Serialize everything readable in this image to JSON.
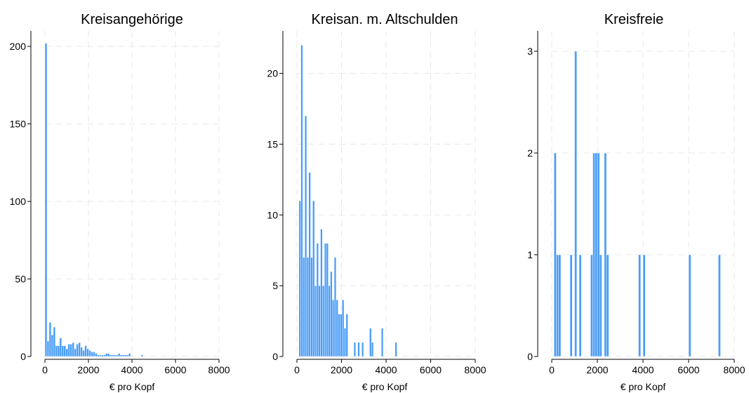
{
  "chart_data": [
    {
      "type": "bar",
      "title": "Kreisangehörige",
      "xlabel": "€ pro Kopf",
      "ylabel": "",
      "xlim": [
        0,
        8000
      ],
      "ylim": [
        0,
        210
      ],
      "x_ticks": [
        "0",
        "2000",
        "4000",
        "6000",
        "8000"
      ],
      "y_ticks": [
        "0",
        "50",
        "100",
        "150",
        "200"
      ],
      "grid": true,
      "bar_width": 96,
      "x": [
        0,
        96,
        192,
        288,
        384,
        480,
        576,
        672,
        768,
        864,
        960,
        1056,
        1152,
        1248,
        1344,
        1440,
        1536,
        1632,
        1728,
        1824,
        1920,
        2016,
        2112,
        2208,
        2304,
        2400,
        2496,
        2592,
        2688,
        2784,
        2880,
        2976,
        3072,
        3168,
        3264,
        3360,
        3456,
        3552,
        3648,
        3744,
        3840,
        4416
      ],
      "values": [
        202,
        10,
        22,
        14,
        19,
        7,
        7,
        12,
        7,
        7,
        5,
        8,
        8,
        9,
        5,
        8,
        9,
        6,
        4,
        7,
        5,
        4,
        3,
        3,
        2,
        1,
        1,
        1,
        1,
        2,
        2,
        1,
        1,
        1,
        1,
        2,
        1,
        1,
        1,
        1,
        2,
        1
      ]
    },
    {
      "type": "bar",
      "title": "Kreisan. m. Altschulden",
      "xlabel": "€ pro Kopf",
      "ylabel": "",
      "xlim": [
        0,
        8000
      ],
      "ylim": [
        0,
        23
      ],
      "x_ticks": [
        "0",
        "2000",
        "4000",
        "6000",
        "8000"
      ],
      "y_ticks": [
        "0",
        "5",
        "10",
        "15",
        "20"
      ],
      "grid": true,
      "bar_width": 88,
      "x": [
        88,
        176,
        264,
        352,
        440,
        528,
        616,
        704,
        792,
        880,
        968,
        1056,
        1144,
        1232,
        1320,
        1408,
        1496,
        1584,
        1672,
        1760,
        1848,
        1936,
        2024,
        2112,
        2200,
        2552,
        2728,
        2904,
        3256,
        3344,
        3784,
        4400
      ],
      "values": [
        11,
        22,
        7,
        17,
        7,
        13,
        7,
        11,
        5,
        8,
        5,
        9,
        5,
        8,
        8,
        5,
        6,
        4,
        7,
        4,
        3,
        3,
        4,
        2,
        3,
        1,
        1,
        1,
        2,
        1,
        2,
        1
      ]
    },
    {
      "type": "bar",
      "title": "Kreisfreie",
      "xlabel": "€ pro Kopf",
      "ylabel": "",
      "xlim": [
        0,
        8000
      ],
      "ylim": [
        0,
        3.2
      ],
      "x_ticks": [
        "0",
        "2000",
        "4000",
        "6000",
        "8000"
      ],
      "y_ticks": [
        "0",
        "1",
        "2",
        "3"
      ],
      "grid": true,
      "bar_width": 100,
      "x": [
        100,
        200,
        300,
        800,
        1000,
        1200,
        1700,
        1800,
        1900,
        2000,
        2100,
        2300,
        2400,
        3800,
        4000,
        6000,
        7300
      ],
      "values": [
        2,
        1,
        1,
        1,
        3,
        1,
        1,
        2,
        2,
        2,
        1,
        2,
        1,
        1,
        1,
        1,
        1
      ]
    }
  ],
  "colors": {
    "bar_fill": "#4a9df8",
    "bar_edge": "#ffffff"
  }
}
